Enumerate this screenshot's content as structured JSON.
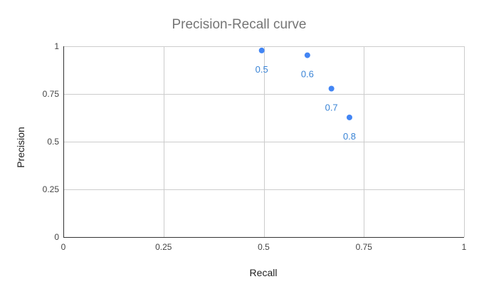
{
  "chart_data": {
    "type": "scatter",
    "title": "Precision-Recall curve",
    "xlabel": "Recall",
    "ylabel": "Precision",
    "xlim": [
      0,
      1
    ],
    "ylim": [
      0,
      1
    ],
    "xticks": [
      "0",
      "0.25",
      "0.5",
      "0.75",
      "1"
    ],
    "yticks": [
      "0",
      "0.25",
      "0.5",
      "0.75",
      "1"
    ],
    "grid": true,
    "legend": "none",
    "series": [
      {
        "color": "#4285f4",
        "label_color": "#3a84d6",
        "points": [
          {
            "x": 0.495,
            "y": 0.978,
            "label": "0.5"
          },
          {
            "x": 0.609,
            "y": 0.953,
            "label": "0.6"
          },
          {
            "x": 0.669,
            "y": 0.778,
            "label": "0.7"
          },
          {
            "x": 0.714,
            "y": 0.627,
            "label": "0.8"
          }
        ]
      }
    ]
  }
}
